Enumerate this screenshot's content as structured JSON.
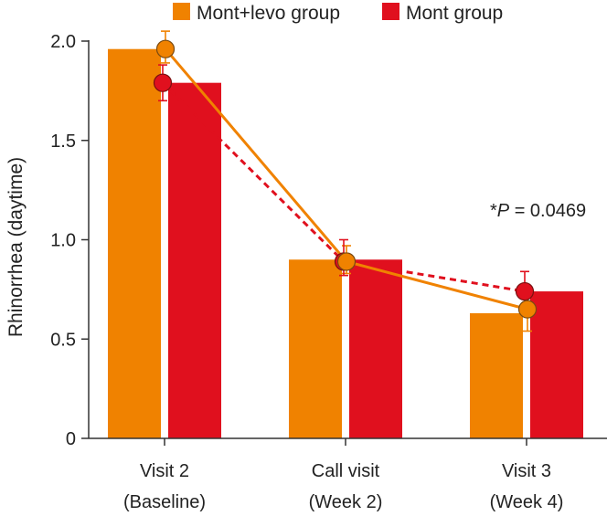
{
  "chart_data": {
    "type": "bar",
    "categories": [
      [
        "Visit 2",
        "(Baseline)"
      ],
      [
        "Call visit",
        "(Week 2)"
      ],
      [
        "Visit 3",
        "(Week 4)"
      ]
    ],
    "series": [
      {
        "name": "Mont+levo group",
        "color": "#F08200",
        "values": [
          1.96,
          0.9,
          0.63
        ],
        "point_values": [
          1.96,
          0.89,
          0.65
        ],
        "error_upper": [
          2.05,
          0.97,
          0.74
        ],
        "error_lower": [
          1.89,
          0.83,
          0.54
        ],
        "line_style": "solid"
      },
      {
        "name": "Mont group",
        "color": "#E0101E",
        "values": [
          1.79,
          0.9,
          0.74
        ],
        "point_values": [
          1.79,
          0.89,
          0.74
        ],
        "error_upper": [
          1.88,
          1.0,
          0.84
        ],
        "error_lower": [
          1.7,
          0.82,
          0.64
        ],
        "line_style": "dashed"
      }
    ],
    "ylabel": "Rhinorrhea (daytime)",
    "xlabel": "",
    "ylim": [
      0,
      2.05
    ],
    "yticks": [
      "0",
      "0.5",
      "1.0",
      "1.5",
      "2.0"
    ],
    "ytick_values": [
      0,
      0.5,
      1.0,
      1.5,
      2.0
    ],
    "legend_position": "top",
    "grid": false,
    "annotation": {
      "prefix": "*",
      "italic": "P",
      "rest": " = 0.0469"
    }
  }
}
